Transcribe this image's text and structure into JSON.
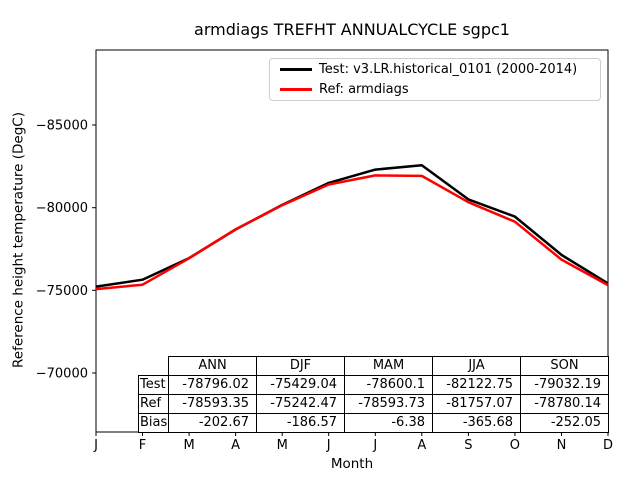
{
  "chart_data": {
    "type": "line",
    "title": "armdiags TREFHT ANNUALCYCLE sgpc1",
    "xlabel": "Month",
    "ylabel": "Reference height temperature (DegC)",
    "x_tick_labels": [
      "J",
      "F",
      "M",
      "A",
      "M",
      "J",
      "J",
      "A",
      "S",
      "O",
      "N",
      "D"
    ],
    "y_ticks": [
      -85000,
      -80000,
      -75000,
      -70000
    ],
    "y_tick_labels": [
      "−85000",
      "−80000",
      "−75000",
      "−70000"
    ],
    "ylim": [
      -89536,
      -66431
    ],
    "y_axis_inverted": true,
    "grid": false,
    "legend_position": "upper right",
    "series": [
      {
        "id": "test",
        "name": "Test: v3.LR.historical_0101 (2000-2014)",
        "color": "#000000",
        "values": [
          -75225,
          -75640,
          -76950,
          -78680,
          -80170,
          -81500,
          -82300,
          -82570,
          -80500,
          -79460,
          -77140,
          -75420
        ]
      },
      {
        "id": "ref",
        "name": "Ref: armdiags",
        "color": "#ff0000",
        "values": [
          -75075,
          -75340,
          -76940,
          -78690,
          -80150,
          -81400,
          -81950,
          -81920,
          -80330,
          -79150,
          -76860,
          -75315
        ]
      }
    ]
  },
  "table": {
    "columns": [
      "ANN",
      "DJF",
      "MAM",
      "JJA",
      "SON"
    ],
    "rows": [
      {
        "label": "Test",
        "values": [
          "-78796.02",
          "-75429.04",
          "-78600.1",
          "-82122.75",
          "-79032.19"
        ]
      },
      {
        "label": "Ref",
        "values": [
          "-78593.35",
          "-75242.47",
          "-78593.73",
          "-81757.07",
          "-78780.14"
        ]
      },
      {
        "label": "Bias",
        "values": [
          "-202.67",
          "-186.57",
          "-6.38",
          "-365.68",
          "-252.05"
        ]
      }
    ]
  }
}
